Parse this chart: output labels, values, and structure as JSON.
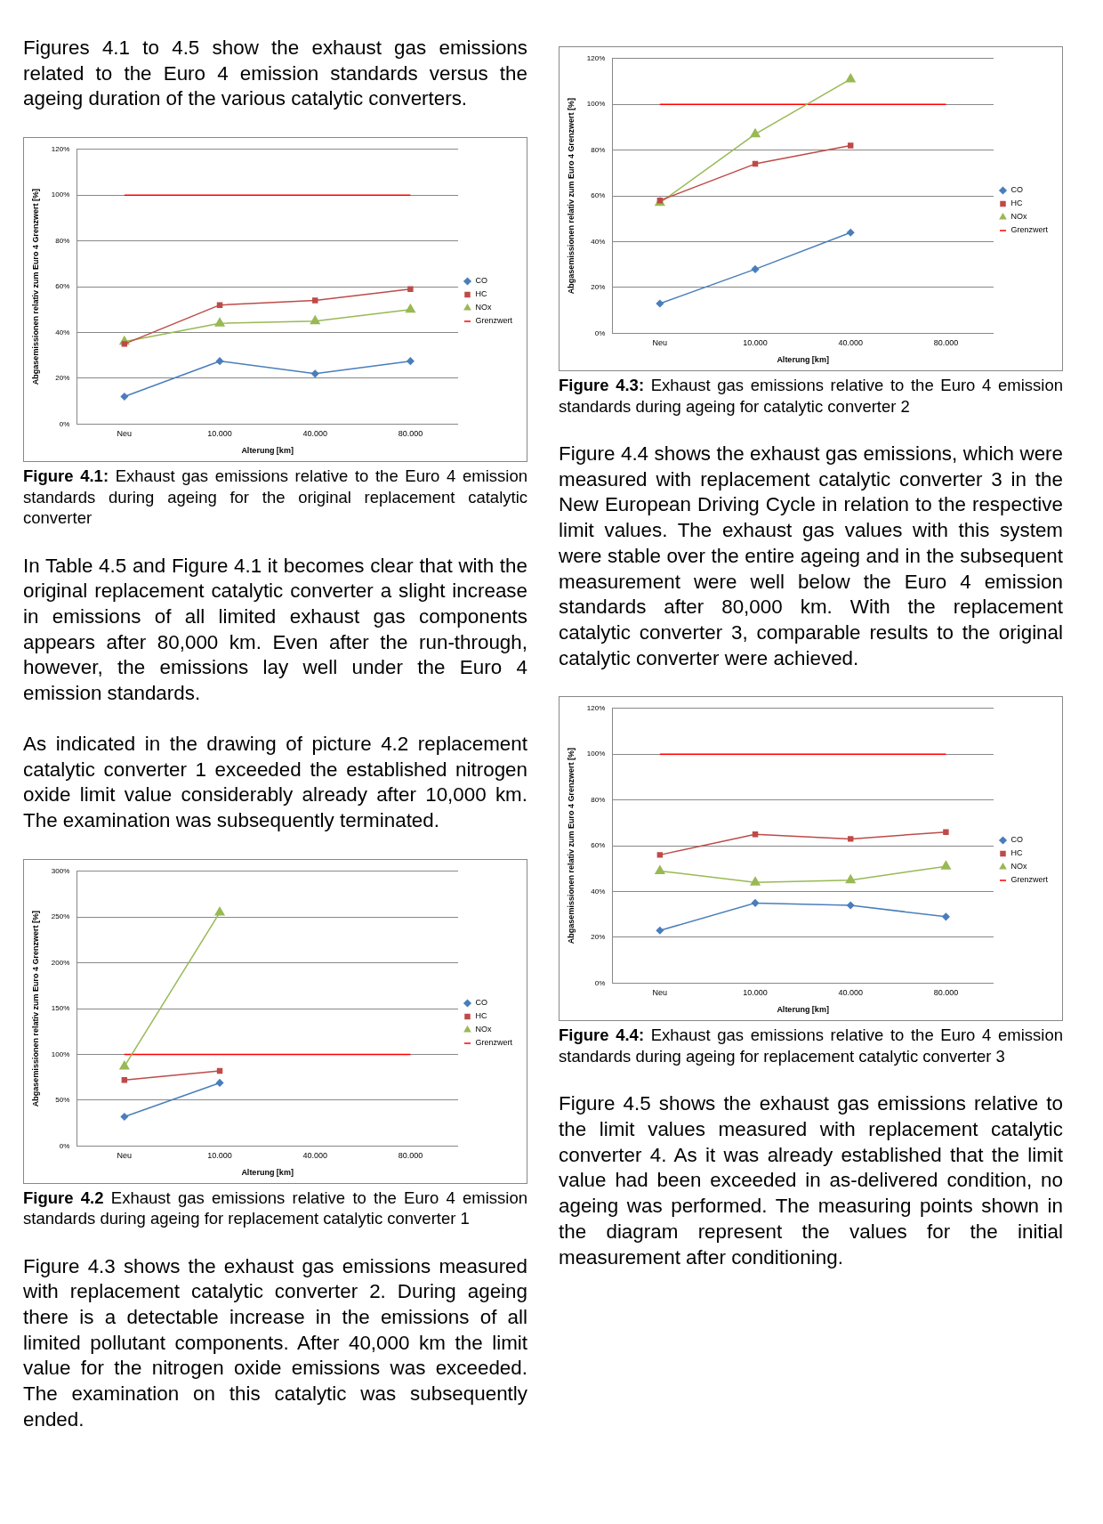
{
  "chart_data": [
    {
      "type": "other",
      "annotations": [
        "Figures 4.1 to 4.5 show the exhaust gas emissions related to the Euro 4 emission standards versus the ageing duration of the various catalytic converters."
      ]
    },
    {
      "type": "line",
      "xlabel": "Alterung [km]",
      "ylabel": "Abgasemissionen relativ zum Euro 4 Grenzwert [%]",
      "categories": [
        "Neu",
        "10.000",
        "40.000",
        "80.000"
      ],
      "ylim": [
        0,
        120
      ],
      "yticks": [
        {
          "value": 0,
          "label": "0%"
        },
        {
          "value": 20,
          "label": "20%"
        },
        {
          "value": 40,
          "label": "40%"
        },
        {
          "value": 60,
          "label": "60%"
        },
        {
          "value": 80,
          "label": "80%"
        },
        {
          "value": 100,
          "label": "100%"
        },
        {
          "value": 120,
          "label": "120%"
        }
      ],
      "grid": "y",
      "legend": "right",
      "series": [
        {
          "name": "CO",
          "color": "#4a7ebb",
          "marker": "diamond",
          "values": [
            12,
            27.5,
            22,
            27.5
          ]
        },
        {
          "name": "HC",
          "color": "#be4b48",
          "marker": "square",
          "values": [
            35,
            52,
            54,
            59
          ]
        },
        {
          "name": "NOx",
          "color": "#98b954",
          "marker": "triangle",
          "values": [
            36,
            44,
            45,
            50
          ]
        },
        {
          "name": "Grenzwert",
          "color": "#ff0000",
          "marker": "none",
          "values": [
            100,
            100,
            100,
            100
          ]
        }
      ],
      "annotations": [
        "Figure 4.1:",
        "Exhaust gas emissions relative to the Euro 4 emission standards during ageing for the original replacement catalytic converter"
      ]
    },
    {
      "type": "other",
      "annotations": [
        "In Table 4.5 and Figure 4.1 it becomes clear that with the original replacement catalytic converter a slight increase in emissions of all limited exhaust gas components appears after 80,000 km. Even after the run-through, however, the emissions lay well under the Euro 4 emission standards.",
        "As indicated in the drawing of picture 4.2 replacement catalytic converter 1 exceeded the established nitrogen oxide limit value considerably already after 10,000 km. The examination was subsequently terminated."
      ]
    },
    {
      "type": "line",
      "xlabel": "Alterung [km]",
      "ylabel": "Abgasemissionen relativ zum Euro 4 Grenzwert [%]",
      "categories": [
        "Neu",
        "10.000",
        "40.000",
        "80.000"
      ],
      "ylim": [
        0,
        300
      ],
      "yticks": [
        {
          "value": 0,
          "label": "0%"
        },
        {
          "value": 50,
          "label": "50%"
        },
        {
          "value": 100,
          "label": "100%"
        },
        {
          "value": 150,
          "label": "150%"
        },
        {
          "value": 200,
          "label": "200%"
        },
        {
          "value": 250,
          "label": "250%"
        },
        {
          "value": 300,
          "label": "300%"
        }
      ],
      "grid": "y",
      "legend": "right",
      "series": [
        {
          "name": "CO",
          "color": "#4a7ebb",
          "marker": "diamond",
          "values": [
            32,
            69,
            null,
            null
          ]
        },
        {
          "name": "HC",
          "color": "#be4b48",
          "marker": "square",
          "values": [
            72,
            82,
            null,
            null
          ]
        },
        {
          "name": "NOx",
          "color": "#98b954",
          "marker": "triangle",
          "values": [
            87,
            255,
            null,
            null
          ]
        },
        {
          "name": "Grenzwert",
          "color": "#ff0000",
          "marker": "none",
          "values": [
            100,
            100,
            100,
            100
          ]
        }
      ],
      "annotations": [
        "Figure 4.2",
        "Exhaust gas emissions relative to the Euro 4 emission standards during ageing for replacement catalytic converter 1"
      ]
    },
    {
      "type": "other",
      "annotations": [
        "Figure 4.3 shows the exhaust gas emissions measured with replacement catalytic converter 2. During ageing there is a detectable increase in the emissions of all limited pollutant components. After 40,000 km the limit value for the nitrogen oxide emissions was exceeded. The examination on this catalytic was subsequently ended."
      ]
    },
    {
      "type": "line",
      "xlabel": "Alterung [km]",
      "ylabel": "Abgasemissionen relativ zum Euro 4 Grenzwert [%]",
      "categories": [
        "Neu",
        "10.000",
        "40.000",
        "80.000"
      ],
      "ylim": [
        0,
        120
      ],
      "yticks": [
        {
          "value": 0,
          "label": "0%"
        },
        {
          "value": 20,
          "label": "20%"
        },
        {
          "value": 40,
          "label": "40%"
        },
        {
          "value": 60,
          "label": "60%"
        },
        {
          "value": 80,
          "label": "80%"
        },
        {
          "value": 100,
          "label": "100%"
        },
        {
          "value": 120,
          "label": "120%"
        }
      ],
      "grid": "y",
      "legend": "right",
      "series": [
        {
          "name": "CO",
          "color": "#4a7ebb",
          "marker": "diamond",
          "values": [
            13,
            28,
            44,
            null
          ]
        },
        {
          "name": "HC",
          "color": "#be4b48",
          "marker": "square",
          "values": [
            58,
            74,
            82,
            null
          ]
        },
        {
          "name": "NOx",
          "color": "#98b954",
          "marker": "triangle",
          "values": [
            57,
            87,
            111,
            null
          ]
        },
        {
          "name": "Grenzwert",
          "color": "#ff0000",
          "marker": "none",
          "values": [
            100,
            100,
            100,
            100
          ]
        }
      ],
      "annotations": [
        "Figure 4.3:",
        "Exhaust gas emissions relative to the Euro 4 emission standards during ageing for catalytic converter 2"
      ]
    },
    {
      "type": "other",
      "annotations": [
        "Figure 4.4 shows the exhaust gas emissions, which were measured with replacement catalytic converter 3 in the New European Driving Cycle in relation to the respective limit values. The exhaust gas values with this system were stable over the entire ageing and in the subsequent measurement were well below the Euro 4 emission standards after 80,000 km. With the replacement catalytic converter 3, comparable results to the original catalytic converter were achieved."
      ]
    },
    {
      "type": "line",
      "xlabel": "Alterung [km]",
      "ylabel": "Abgasemissionen relativ zum Euro 4 Grenzwert [%]",
      "categories": [
        "Neu",
        "10.000",
        "40.000",
        "80.000"
      ],
      "ylim": [
        0,
        120
      ],
      "yticks": [
        {
          "value": 0,
          "label": "0%"
        },
        {
          "value": 20,
          "label": "20%"
        },
        {
          "value": 40,
          "label": "40%"
        },
        {
          "value": 60,
          "label": "60%"
        },
        {
          "value": 80,
          "label": "80%"
        },
        {
          "value": 100,
          "label": "100%"
        },
        {
          "value": 120,
          "label": "120%"
        }
      ],
      "grid": "y",
      "legend": "right",
      "series": [
        {
          "name": "CO",
          "color": "#4a7ebb",
          "marker": "diamond",
          "values": [
            23,
            35,
            34,
            29
          ]
        },
        {
          "name": "HC",
          "color": "#be4b48",
          "marker": "square",
          "values": [
            56,
            65,
            63,
            66
          ]
        },
        {
          "name": "NOx",
          "color": "#98b954",
          "marker": "triangle",
          "values": [
            49,
            44,
            45,
            51
          ]
        },
        {
          "name": "Grenzwert",
          "color": "#ff0000",
          "marker": "none",
          "values": [
            100,
            100,
            100,
            100
          ]
        }
      ],
      "annotations": [
        "Figure 4.4:",
        "Exhaust gas emissions relative to the Euro 4 emission standards during ageing for replacement catalytic converter 3"
      ]
    },
    {
      "type": "other",
      "annotations": [
        "Figure 4.5 shows the exhaust gas emissions relative to the limit values measured with replacement catalytic converter 4. As it was already established that the limit value had been exceeded in as-delivered condition, no ageing was performed. The measuring points shown in the diagram represent the values for the initial measurement after conditioning."
      ]
    }
  ]
}
